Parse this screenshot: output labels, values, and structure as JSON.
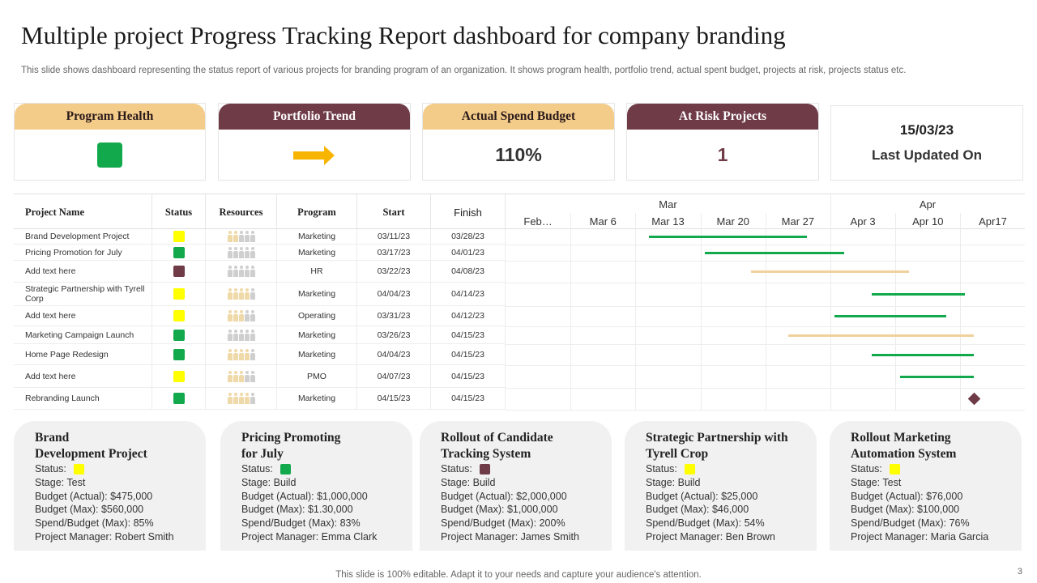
{
  "title": "Multiple project Progress Tracking Report dashboard for company branding",
  "subtitle": "This slide shows dashboard representing the status report of various projects for branding program of an organization. It shows program health, portfolio trend, actual spent budget, projects at risk, projects status etc.",
  "colors": {
    "green": "#11a94c",
    "yellow": "#ffff00",
    "maroon": "#6e3b47",
    "tan": "#f3cc8a",
    "bar_green": "#11a94c",
    "bar_tan": "#f0d19c"
  },
  "kpis": {
    "program_health": {
      "label": "Program Health",
      "indicator": "green-square"
    },
    "portfolio_trend": {
      "label": "Portfolio Trend",
      "indicator": "right-arrow-icon"
    },
    "actual_spend": {
      "label": "Actual Spend Budget",
      "value": "110%"
    },
    "at_risk": {
      "label": "At Risk Projects",
      "value": "1"
    },
    "last_updated": {
      "date": "15/03/23",
      "label": "Last Updated On"
    }
  },
  "table": {
    "headers": {
      "name": "Project Name",
      "status": "Status",
      "resources": "Resources",
      "program": "Program",
      "start": "Start",
      "finish": "Finish"
    },
    "rows": [
      {
        "name": "Brand Development Project",
        "status": "yellow",
        "resources": 2,
        "program": "Marketing",
        "start": "03/11/23",
        "finish": "03/28/23"
      },
      {
        "name": "Pricing Promotion  for July",
        "status": "green",
        "resources": 0,
        "program": "Marketing",
        "start": "03/17/23",
        "finish": "04/01/23"
      },
      {
        "name": "Add text here",
        "status": "maroon",
        "resources": 0,
        "program": "HR",
        "start": "03/22/23",
        "finish": "04/08/23"
      },
      {
        "name": "Strategic Partnership with Tyrell Corp",
        "status": "yellow",
        "resources": 4,
        "program": "Marketing",
        "start": "04/04/23",
        "finish": "04/14/23"
      },
      {
        "name": "Add text here",
        "status": "yellow",
        "resources": 3,
        "program": "Operating",
        "start": "03/31/23",
        "finish": "04/12/23"
      },
      {
        "name": "Marketing Campaign Launch",
        "status": "green",
        "resources": 0,
        "program": "Marketing",
        "start": "03/26/23",
        "finish": "04/15/23"
      },
      {
        "name": "Home Page  Redesign",
        "status": "green",
        "resources": 4,
        "program": "Marketing",
        "start": "04/04/23",
        "finish": "04/15/23"
      },
      {
        "name": "Add text here",
        "status": "yellow",
        "resources": 3,
        "program": "PMO",
        "start": "04/07/23",
        "finish": "04/15/23"
      },
      {
        "name": "Rebranding Launch",
        "status": "green",
        "resources": 4,
        "program": "Marketing",
        "start": "04/15/23",
        "finish": "04/15/23"
      }
    ]
  },
  "gantt": {
    "months": [
      "Mar",
      "Apr"
    ],
    "weeks": [
      "Feb…",
      "Mar 6",
      "Mar 13",
      "Mar 20",
      "Mar 27",
      "Apr 3",
      "Apr 10",
      "Apr17"
    ],
    "bars": [
      {
        "start": "2023-03-11",
        "end": "2023-03-28",
        "color": "green"
      },
      {
        "start": "2023-03-17",
        "end": "2023-04-01",
        "color": "green"
      },
      {
        "start": "2023-03-22",
        "end": "2023-04-08",
        "color": "tan"
      },
      {
        "start": "2023-04-04",
        "end": "2023-04-14",
        "color": "green"
      },
      {
        "start": "2023-03-31",
        "end": "2023-04-12",
        "color": "green"
      },
      {
        "start": "2023-03-26",
        "end": "2023-04-15",
        "color": "tan"
      },
      {
        "start": "2023-04-04",
        "end": "2023-04-15",
        "color": "green"
      },
      {
        "start": "2023-04-07",
        "end": "2023-04-15",
        "color": "green"
      },
      {
        "start": "2023-04-15",
        "end": "2023-04-15",
        "color": "milestone"
      }
    ]
  },
  "cards": [
    {
      "title": "Brand\nDevelopment Project",
      "status_label": "Status:",
      "status": "yellow",
      "stage": "Stage: Test",
      "budget_actual": "Budget (Actual): $475,000",
      "budget_max": "Budget (Max): $560,000",
      "spend": "Spend/Budget (Max): 85%",
      "manager": "Project Manager:  Robert Smith"
    },
    {
      "title": "Pricing Promoting\n for July",
      "status_label": "Status:",
      "status": "green",
      "stage": "Stage: Build",
      "budget_actual": "Budget (Actual): $1,000,000",
      "budget_max": "Budget (Max): $1.30,000",
      "spend": "Spend/Budget (Max): 83%",
      "manager": "Project Manager:  Emma Clark"
    },
    {
      "title": "Rollout of Candidate\nTracking System",
      "status_label": "Status:",
      "status": "maroon",
      "stage": "Stage: Build",
      "budget_actual": "Budget (Actual): $2,000,000",
      "budget_max": "Budget (Max): $1,000,000",
      "spend": "Spend/Budget (Max): 200%",
      "manager": "Project Manager:  James Smith"
    },
    {
      "title": "Strategic Partnership with\nTyrell Crop",
      "status_label": "Status:",
      "status": "yellow",
      "stage": "Stage: Build",
      "budget_actual": "Budget (Actual): $25,000",
      "budget_max": "Budget (Max): $46,000",
      "spend": "Spend/Budget (Max): 54%",
      "manager": "Project Manager:  Ben Brown"
    },
    {
      "title": "Rollout Marketing\nAutomation System",
      "status_label": "Status:",
      "status": "yellow",
      "stage": "Stage: Test",
      "budget_actual": "Budget (Actual): $76,000",
      "budget_max": "Budget (Max): $100,000",
      "spend": "Spend/Budget (Max): 76%",
      "manager": "Project Manager:  Maria Garcia"
    }
  ],
  "footer": "This slide is 100% editable. Adapt it to your needs and capture your audience's attention.",
  "page_number": "3"
}
